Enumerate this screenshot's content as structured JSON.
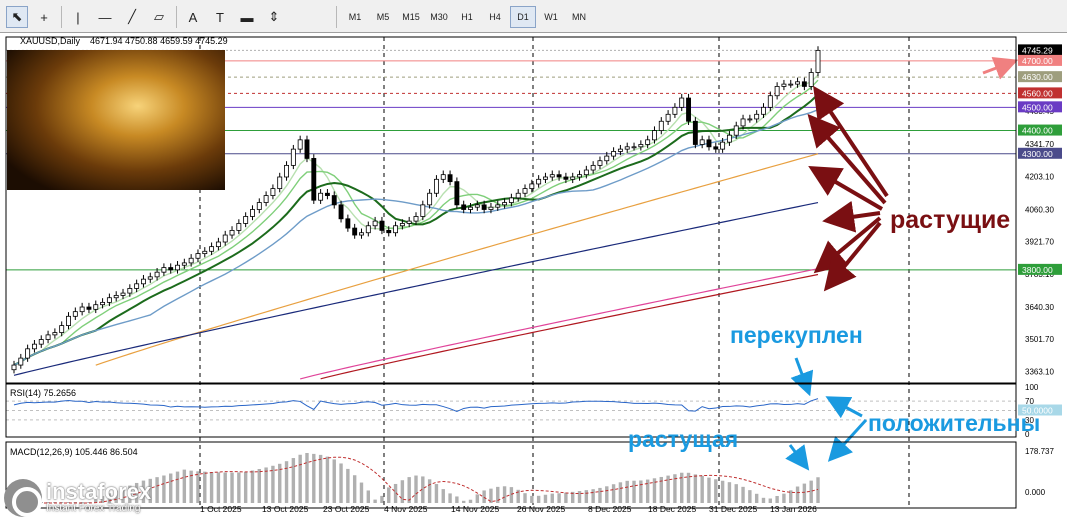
{
  "toolbar": {
    "tools": [
      "cursor-icon",
      "crosshair-icon",
      "vertical-line-icon",
      "horizontal-line-icon",
      "trendline-icon",
      "channel-icon",
      "text-icon",
      "text-label-icon",
      "rectangle-icon",
      "arrows-icon"
    ],
    "timeframes": [
      "M1",
      "M5",
      "M15",
      "M30",
      "H1",
      "H4",
      "D1",
      "W1",
      "MN"
    ],
    "active_timeframe": "D1"
  },
  "header": {
    "symbol": "XAUUSD,Daily",
    "ohlc": "4671.94 4750.88 4659.59 4745.29"
  },
  "price_labels": [
    {
      "text": "4745.29",
      "value": 4745.29,
      "bg": "#000000",
      "fg": "#ffffff"
    },
    {
      "text": "4700.00",
      "value": 4700,
      "bg": "#f08080",
      "fg": "#ffffff"
    },
    {
      "text": "4630.00",
      "value": 4630,
      "bg": "#9e9e7e",
      "fg": "#ffffff"
    },
    {
      "text": "4560.00",
      "value": 4560,
      "bg": "#c03030",
      "fg": "#ffffff"
    },
    {
      "text": "4500.00",
      "value": 4500,
      "bg": "#6a3bc4",
      "fg": "#ffffff"
    },
    {
      "text": "4400.00",
      "value": 4400,
      "bg": "#2e9e3a",
      "fg": "#ffffff"
    },
    {
      "text": "4300.00",
      "value": 4300,
      "bg": "#4a4a8a",
      "fg": "#ffffff"
    },
    {
      "text": "3800.00",
      "value": 3800,
      "bg": "#2e9e3a",
      "fg": "#ffffff"
    }
  ],
  "axis_ticks": [
    "4483.45",
    "4341.70",
    "4203.10",
    "4060.30",
    "3921.70",
    "3783.10",
    "3640.30",
    "3501.70",
    "3363.10"
  ],
  "rsi": {
    "label": "RSI(14) 75.2656",
    "ticks": [
      "100",
      "70",
      "30",
      "0"
    ],
    "level_label": "50.0000"
  },
  "macd": {
    "label": "MACD(12,26,9) 105.446 86.504",
    "ticks": [
      "178.737",
      "0.000"
    ]
  },
  "date_labels": [
    "1 Oct 2025",
    "13 Oct 2025",
    "23 Oct 2025",
    "4 Nov 2025",
    "14 Nov 2025",
    "26 Nov 2025",
    "8 Dec 2025",
    "18 Dec 2025",
    "31 Dec 2025",
    "13 Jan 2026"
  ],
  "annotations": {
    "rising_ma": "растущие",
    "overbought": "перекуплен",
    "positive": "положительны",
    "rising_macd": "растущая"
  },
  "colors": {
    "up": "#ffffff",
    "down": "#000000",
    "annot_dark": "#7a0f12",
    "annot_blue": "#1a9ae0",
    "accent_arrow": "#f08080"
  },
  "logo": {
    "name": "instaforex",
    "tagline": "Instant Forex Trading"
  },
  "chart_data": {
    "type": "candlestick",
    "symbol": "XAUUSD",
    "timeframe": "Daily",
    "ylim": [
      3330,
      4790
    ],
    "last": {
      "open": 4671.94,
      "high": 4750.88,
      "low": 4659.59,
      "close": 4745.29
    },
    "close": [
      3390,
      3420,
      3460,
      3480,
      3500,
      3520,
      3530,
      3560,
      3600,
      3620,
      3640,
      3630,
      3650,
      3660,
      3680,
      3690,
      3700,
      3720,
      3740,
      3760,
      3770,
      3790,
      3810,
      3800,
      3820,
      3830,
      3850,
      3870,
      3880,
      3900,
      3920,
      3950,
      3970,
      4000,
      4030,
      4060,
      4090,
      4120,
      4150,
      4200,
      4250,
      4320,
      4360,
      4280,
      4100,
      4130,
      4120,
      4080,
      4020,
      3980,
      3950,
      3960,
      3990,
      4010,
      3970,
      3960,
      3990,
      4000,
      4010,
      4030,
      4080,
      4130,
      4190,
      4210,
      4180,
      4080,
      4060,
      4070,
      4080,
      4060,
      4070,
      4080,
      4090,
      4110,
      4130,
      4150,
      4170,
      4190,
      4200,
      4210,
      4200,
      4190,
      4200,
      4210,
      4230,
      4250,
      4270,
      4290,
      4310,
      4320,
      4330,
      4330,
      4340,
      4360,
      4400,
      4440,
      4470,
      4500,
      4540,
      4440,
      4340,
      4360,
      4330,
      4320,
      4350,
      4380,
      4420,
      4450,
      4450,
      4470,
      4500,
      4550,
      4590,
      4600,
      4600,
      4610,
      4590,
      4650,
      4745.29
    ],
    "ma_series": [
      {
        "color": "#b8e0b0"
      },
      {
        "color": "#7fcf7a"
      },
      {
        "color": "#1c6b1c"
      },
      {
        "color": "#6e9cc8"
      },
      {
        "color": "#e8a040"
      },
      {
        "color": "#1a2a7a"
      },
      {
        "color": "#e0449a"
      },
      {
        "color": "#b01820"
      }
    ],
    "rsi": {
      "value": 75.2656,
      "levels": [
        70,
        50,
        30
      ]
    },
    "macd": {
      "main": 105.446,
      "signal": 86.504
    }
  }
}
